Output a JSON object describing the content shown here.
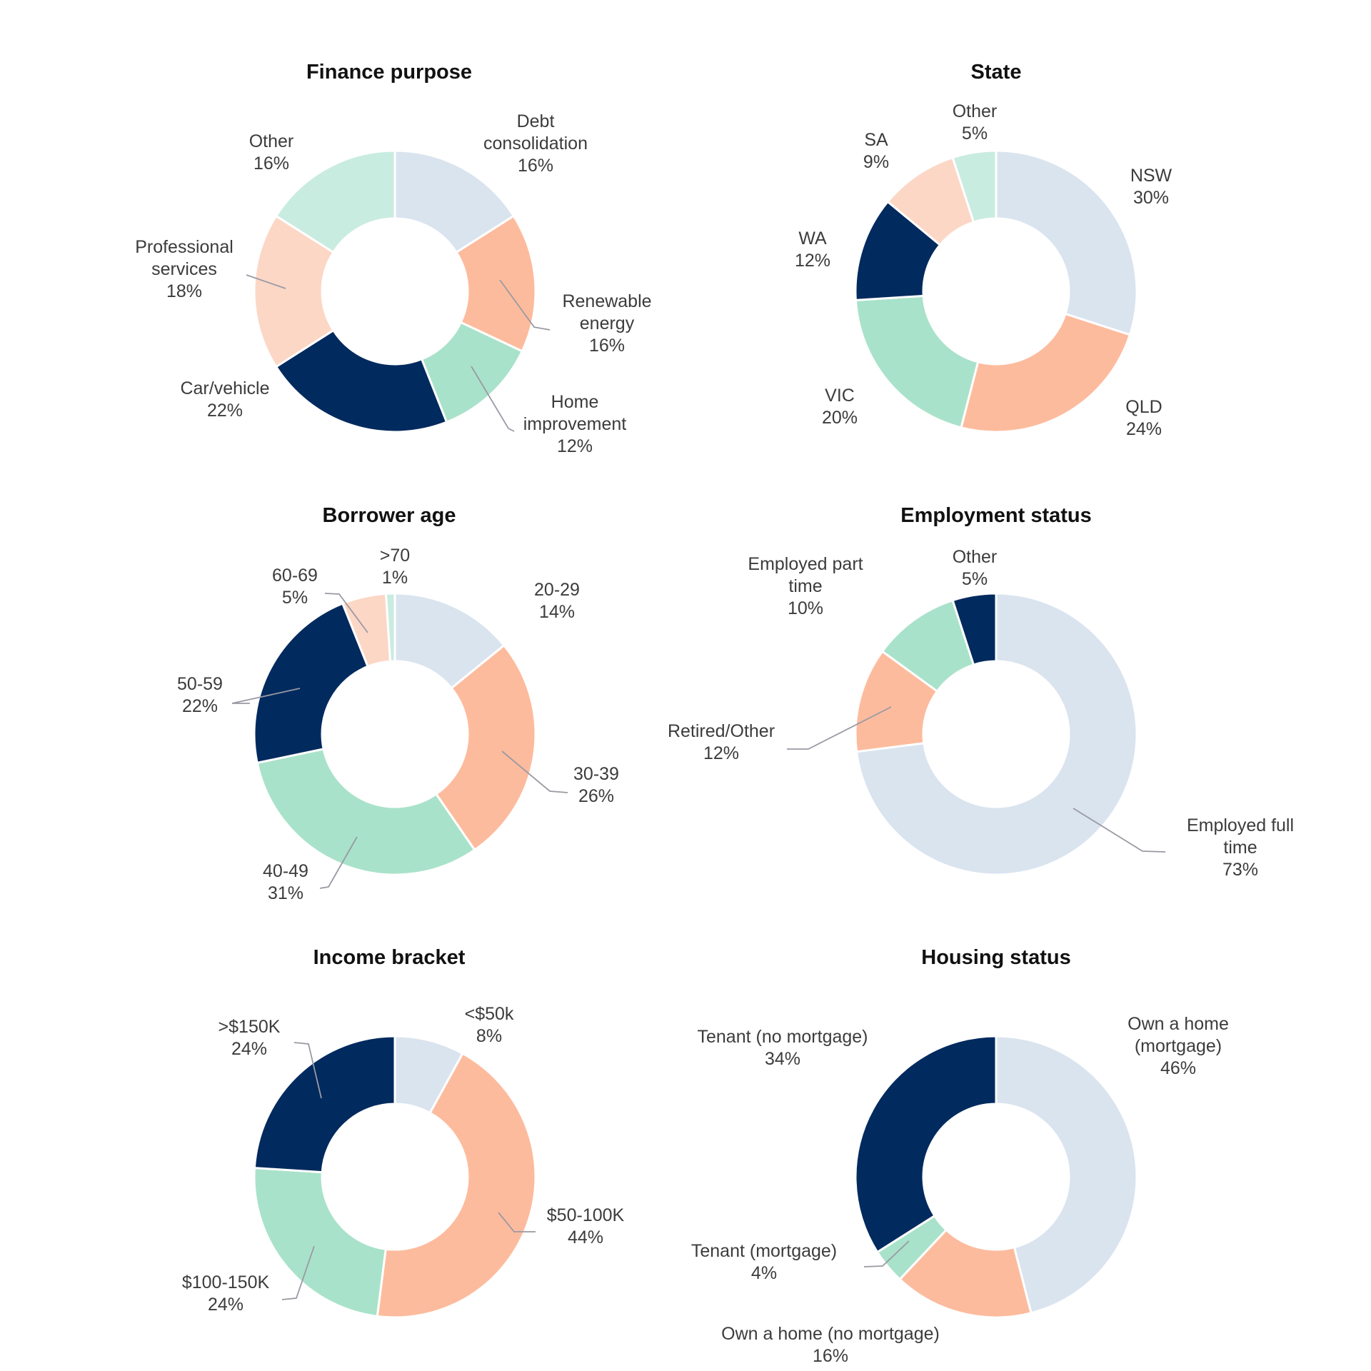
{
  "palette": {
    "light_blue": "#dae4ef",
    "salmon": "#fdbb9d",
    "mint": "#a9e2ca",
    "navy": "#012a5e",
    "peach": "#fcd7c6",
    "light_mint": "#c9ece0"
  },
  "chart_data": [
    {
      "type": "donut",
      "title": "Finance purpose",
      "slices": [
        {
          "name": "Debt consolidation",
          "label_lines": [
            "Debt",
            "consolidation"
          ],
          "value": 16,
          "value_label": "16%",
          "color": "#dae4ef"
        },
        {
          "name": "Renewable energy",
          "label_lines": [
            "Renewable",
            "energy"
          ],
          "value": 16,
          "value_label": "16%",
          "color": "#fdbb9d"
        },
        {
          "name": "Home improvement",
          "label_lines": [
            "Home",
            "improvement"
          ],
          "value": 12,
          "value_label": "12%",
          "color": "#a9e2ca"
        },
        {
          "name": "Car/vehicle",
          "label_lines": [
            "Car/vehicle"
          ],
          "value": 22,
          "value_label": "22%",
          "color": "#012a5e"
        },
        {
          "name": "Professional services",
          "label_lines": [
            "Professional",
            "services"
          ],
          "value": 18,
          "value_label": "18%",
          "color": "#fcd7c6"
        },
        {
          "name": "Other",
          "label_lines": [
            "Other"
          ],
          "value": 16,
          "value_label": "16%",
          "color": "#c9ece0"
        }
      ]
    },
    {
      "type": "donut",
      "title": "State",
      "slices": [
        {
          "name": "NSW",
          "label_lines": [
            "NSW"
          ],
          "value": 30,
          "value_label": "30%",
          "color": "#dae4ef"
        },
        {
          "name": "QLD",
          "label_lines": [
            "QLD"
          ],
          "value": 24,
          "value_label": "24%",
          "color": "#fdbb9d"
        },
        {
          "name": "VIC",
          "label_lines": [
            "VIC"
          ],
          "value": 20,
          "value_label": "20%",
          "color": "#a9e2ca"
        },
        {
          "name": "WA",
          "label_lines": [
            "WA"
          ],
          "value": 12,
          "value_label": "12%",
          "color": "#012a5e"
        },
        {
          "name": "SA",
          "label_lines": [
            "SA"
          ],
          "value": 9,
          "value_label": "9%",
          "color": "#fcd7c6"
        },
        {
          "name": "Other",
          "label_lines": [
            "Other"
          ],
          "value": 5,
          "value_label": "5%",
          "color": "#c9ece0"
        }
      ]
    },
    {
      "type": "donut",
      "title": "Borrower age",
      "slices": [
        {
          "name": "20-29",
          "label_lines": [
            "20-29"
          ],
          "value": 14,
          "value_label": "14%",
          "color": "#dae4ef"
        },
        {
          "name": "30-39",
          "label_lines": [
            "30-39"
          ],
          "value": 26,
          "value_label": "26%",
          "color": "#fdbb9d"
        },
        {
          "name": "40-49",
          "label_lines": [
            "40-49"
          ],
          "value": 31,
          "value_label": "31%",
          "color": "#a9e2ca"
        },
        {
          "name": "50-59",
          "label_lines": [
            "50-59"
          ],
          "value": 22,
          "value_label": "22%",
          "color": "#012a5e"
        },
        {
          "name": "60-69",
          "label_lines": [
            "60-69"
          ],
          "value": 5,
          "value_label": "5%",
          "color": "#fcd7c6"
        },
        {
          "name": ">70",
          "label_lines": [
            ">70"
          ],
          "value": 1,
          "value_label": "1%",
          "color": "#c9ece0"
        }
      ]
    },
    {
      "type": "donut",
      "title": "Employment status",
      "slices": [
        {
          "name": "Employed full time",
          "label_lines": [
            "Employed full",
            "time"
          ],
          "value": 73,
          "value_label": "73%",
          "color": "#dae4ef"
        },
        {
          "name": "Retired/Other",
          "label_lines": [
            "Retired/Other"
          ],
          "value": 12,
          "value_label": "12%",
          "color": "#fdbb9d"
        },
        {
          "name": "Employed part time",
          "label_lines": [
            "Employed part",
            "time"
          ],
          "value": 10,
          "value_label": "10%",
          "color": "#a9e2ca"
        },
        {
          "name": "Other",
          "label_lines": [
            "Other"
          ],
          "value": 5,
          "value_label": "5%",
          "color": "#012a5e"
        }
      ]
    },
    {
      "type": "donut",
      "title": "Income bracket",
      "slices": [
        {
          "name": "<$50k",
          "label_lines": [
            "<$50k"
          ],
          "value": 8,
          "value_label": "8%",
          "color": "#dae4ef"
        },
        {
          "name": "$50-100K",
          "label_lines": [
            "$50-100K"
          ],
          "value": 44,
          "value_label": "44%",
          "color": "#fdbb9d"
        },
        {
          "name": "$100-150K",
          "label_lines": [
            "$100-150K"
          ],
          "value": 24,
          "value_label": "24%",
          "color": "#a9e2ca"
        },
        {
          "name": ">$150K",
          "label_lines": [
            ">$150K"
          ],
          "value": 24,
          "value_label": "24%",
          "color": "#012a5e"
        }
      ]
    },
    {
      "type": "donut",
      "title": "Housing status",
      "slices": [
        {
          "name": "Own a home (mortgage)",
          "label_lines": [
            "Own a home",
            "(mortgage)"
          ],
          "value": 46,
          "value_label": "46%",
          "color": "#dae4ef"
        },
        {
          "name": "Own a home (no mortgage)",
          "label_lines": [
            "Own a home (no mortgage)"
          ],
          "value": 16,
          "value_label": "16%",
          "color": "#fdbb9d"
        },
        {
          "name": "Tenant (mortgage)",
          "label_lines": [
            "Tenant (mortgage)"
          ],
          "value": 4,
          "value_label": "4%",
          "color": "#a9e2ca"
        },
        {
          "name": "Tenant (no mortgage)",
          "label_lines": [
            "Tenant (no mortgage)"
          ],
          "value": 34,
          "value_label": "34%",
          "color": "#012a5e"
        }
      ]
    }
  ]
}
